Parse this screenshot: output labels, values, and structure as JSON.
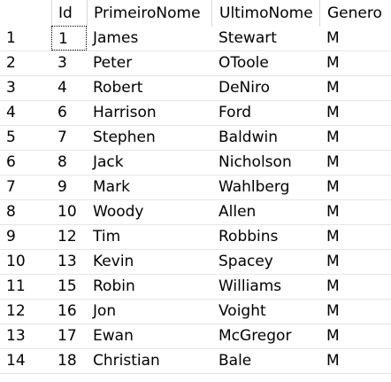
{
  "columns": {
    "rownum": "",
    "id": "Id",
    "first": "PrimeiroNome",
    "last": "UltimoNome",
    "gender": "Genero"
  },
  "rows": [
    {
      "n": "1",
      "id": "1",
      "first": "James",
      "last": "Stewart",
      "gender": "M"
    },
    {
      "n": "2",
      "id": "3",
      "first": "Peter",
      "last": "OToole",
      "gender": "M"
    },
    {
      "n": "3",
      "id": "4",
      "first": "Robert",
      "last": "DeNiro",
      "gender": "M"
    },
    {
      "n": "4",
      "id": "6",
      "first": "Harrison",
      "last": "Ford",
      "gender": "M"
    },
    {
      "n": "5",
      "id": "7",
      "first": "Stephen",
      "last": "Baldwin",
      "gender": "M"
    },
    {
      "n": "6",
      "id": "8",
      "first": "Jack",
      "last": "Nicholson",
      "gender": "M"
    },
    {
      "n": "7",
      "id": "9",
      "first": "Mark",
      "last": "Wahlberg",
      "gender": "M"
    },
    {
      "n": "8",
      "id": "10",
      "first": "Woody",
      "last": "Allen",
      "gender": "M"
    },
    {
      "n": "9",
      "id": "12",
      "first": "Tim",
      "last": "Robbins",
      "gender": "M"
    },
    {
      "n": "10",
      "id": "13",
      "first": "Kevin",
      "last": "Spacey",
      "gender": "M"
    },
    {
      "n": "11",
      "id": "15",
      "first": "Robin",
      "last": "Williams",
      "gender": "M"
    },
    {
      "n": "12",
      "id": "16",
      "first": "Jon",
      "last": "Voight",
      "gender": "M"
    },
    {
      "n": "13",
      "id": "17",
      "first": "Ewan",
      "last": "McGregor",
      "gender": "M"
    },
    {
      "n": "14",
      "id": "18",
      "first": "Christian",
      "last": "Bale",
      "gender": "M"
    }
  ]
}
